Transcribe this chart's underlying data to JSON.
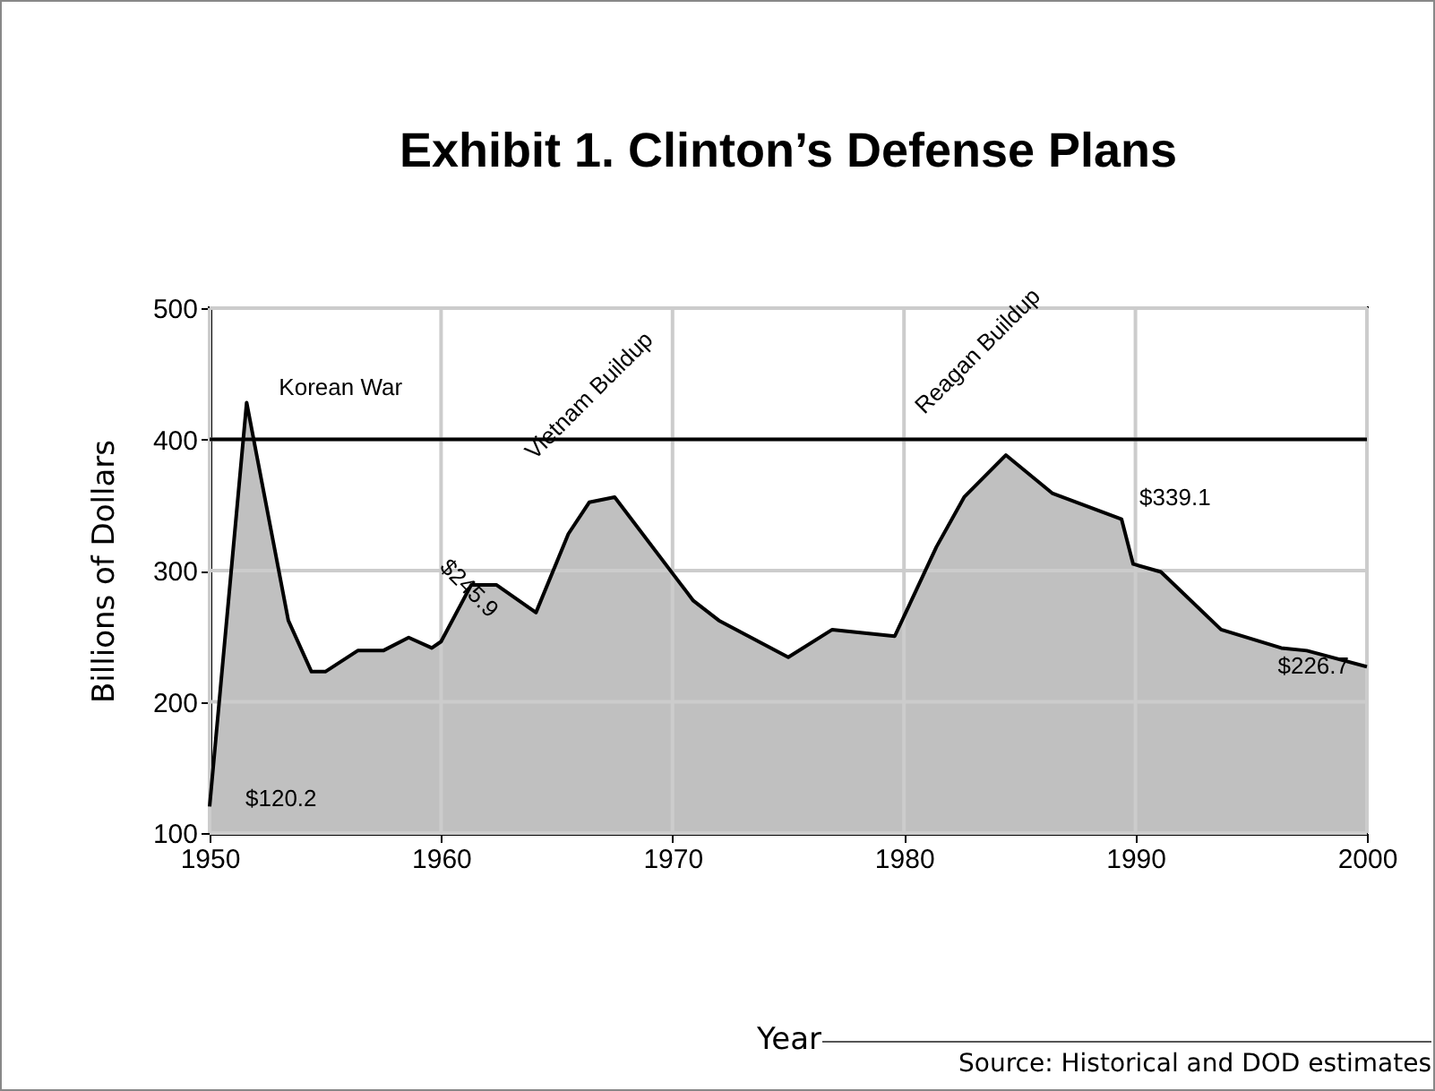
{
  "chart_data": {
    "type": "area",
    "title": "Exhibit 1. Clinton’s Defense Plans",
    "xlabel": "Year",
    "ylabel": "Billions of Dollars",
    "x": [
      1950,
      1951.6,
      1953.4,
      1954.4,
      1955.0,
      1956.4,
      1957.5,
      1958.6,
      1959.6,
      1960,
      1961.3,
      1962.4,
      1964.1,
      1965.5,
      1966.4,
      1967.5,
      1970.9,
      1972.0,
      1975.0,
      1976.9,
      1979.6,
      1981.4,
      1982.6,
      1984.4,
      1986.4,
      1989.4,
      1989.9,
      1991.1,
      1993.7,
      1996.3,
      1997.4,
      2000
    ],
    "series": [
      {
        "color": "#c0c0c0",
        "values": [
          120.2,
          428,
          262,
          223,
          223,
          239,
          239,
          249,
          241,
          245.9,
          289,
          289,
          268,
          328,
          352,
          356,
          277,
          262,
          234,
          255,
          250,
          318,
          356,
          388,
          359,
          339.1,
          305,
          299,
          255,
          241,
          239,
          226.7
        ]
      }
    ],
    "xlim": [
      1950,
      2000
    ],
    "xticks": [
      1950,
      1960,
      1970,
      1980,
      1990,
      2000
    ],
    "ylim": [
      100,
      500
    ],
    "yticks": [
      100,
      200,
      300,
      400,
      500
    ],
    "grid": true,
    "ref_lines": [
      {
        "axis": "y",
        "value": 400
      }
    ],
    "annotations": [
      {
        "text": "Korean War",
        "x": 1951.6,
        "y": 428
      },
      {
        "text": "$120.2",
        "x": 1950,
        "y": 120.2
      },
      {
        "text": "$245.9",
        "x": 1960,
        "y": 245.9
      },
      {
        "text": "Vietnam Buildup",
        "x": 1967.5,
        "y": 356
      },
      {
        "text": "Reagan Buildup",
        "x": 1984.4,
        "y": 388
      },
      {
        "text": "$339.1",
        "x": 1989.4,
        "y": 339.1
      },
      {
        "text": "$226.7",
        "x": 2000,
        "y": 226.7
      },
      "Source: Historical and DOD estimates"
    ]
  }
}
